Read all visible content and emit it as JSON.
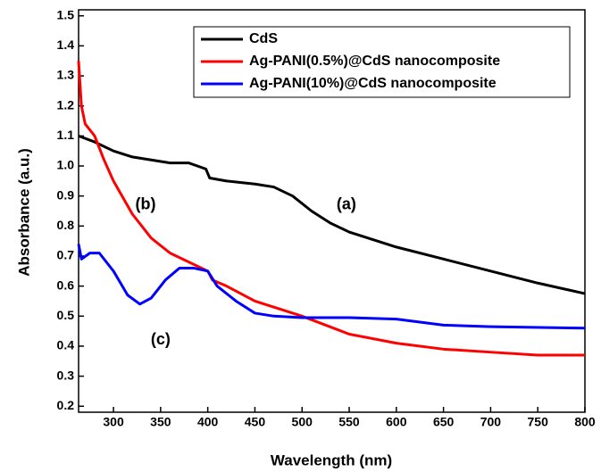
{
  "chart_data": {
    "type": "line",
    "x_label": "Wavelength (nm)",
    "y_label": "Absorbance (a.u.)",
    "xlim": [
      263,
      800
    ],
    "ylim": [
      0.18,
      1.52
    ],
    "xticks": [
      300,
      350,
      400,
      450,
      500,
      550,
      600,
      650,
      700,
      750,
      800
    ],
    "yticks": [
      0.2,
      0.3,
      0.4,
      0.5,
      0.6,
      0.7,
      0.8,
      0.9,
      {
        "value": 1,
        "label": "1.0"
      },
      1.1,
      1.2,
      1.3,
      1.4,
      1.5
    ],
    "legend": "upper right",
    "series": [
      {
        "name": "CdS",
        "color": "#000000",
        "x": [
          263,
          280,
          300,
          320,
          340,
          360,
          380,
          398,
          402,
          420,
          450,
          470,
          490,
          510,
          530,
          550,
          600,
          650,
          700,
          750,
          800
        ],
        "values": [
          1.1,
          1.08,
          1.05,
          1.03,
          1.02,
          1.01,
          1.01,
          0.99,
          0.96,
          0.95,
          0.94,
          0.93,
          0.9,
          0.85,
          0.81,
          0.78,
          0.73,
          0.69,
          0.65,
          0.61,
          0.575
        ]
      },
      {
        "name": "Ag-PANI(0.5%)@CdS nanocomposite",
        "color": "#ff0000",
        "x": [
          263,
          266,
          270,
          280,
          290,
          300,
          320,
          340,
          360,
          380,
          400,
          405,
          420,
          450,
          500,
          550,
          600,
          650,
          700,
          750,
          800
        ],
        "values": [
          1.35,
          1.2,
          1.14,
          1.1,
          1.02,
          0.95,
          0.84,
          0.76,
          0.71,
          0.68,
          0.65,
          0.62,
          0.6,
          0.55,
          0.5,
          0.44,
          0.41,
          0.39,
          0.38,
          0.37,
          0.37
        ]
      },
      {
        "name": "Ag-PANI(10%)@CdS nanocomposite",
        "color": "#0000ff",
        "x": [
          263,
          266,
          275,
          285,
          300,
          315,
          328,
          340,
          355,
          370,
          385,
          400,
          410,
          430,
          450,
          470,
          500,
          550,
          600,
          650,
          700,
          800
        ],
        "values": [
          0.74,
          0.69,
          0.71,
          0.71,
          0.65,
          0.57,
          0.54,
          0.56,
          0.62,
          0.66,
          0.66,
          0.65,
          0.6,
          0.55,
          0.51,
          0.5,
          0.495,
          0.495,
          0.49,
          0.47,
          0.465,
          0.46
        ]
      }
    ],
    "annotations": [
      {
        "text": "(a)",
        "x": 547,
        "y": 0.87
      },
      {
        "text": "(b)",
        "x": 334,
        "y": 0.87
      },
      {
        "text": "(c)",
        "x": 350,
        "y": 0.42
      }
    ]
  }
}
